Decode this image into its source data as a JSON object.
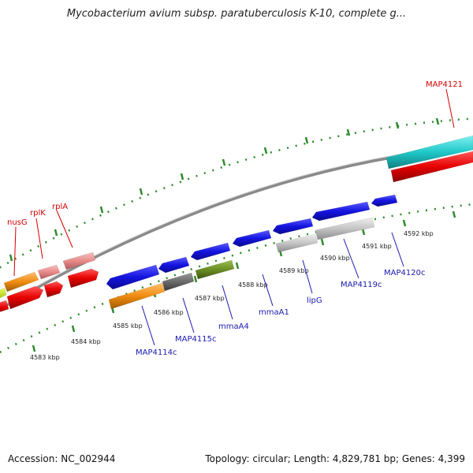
{
  "header": {
    "title": "Mycobacterium avium subsp. paratuberculosis K-10, complete g..."
  },
  "footer": {
    "accession": "Accession: NC_002944",
    "summary": "Topology: circular; Length: 4,829,781 bp; Genes: 4,399"
  },
  "colors": {
    "forward_label": "#d40000",
    "reverse_label": "#1a1ab0",
    "tick": "#2e8b2e",
    "backbone": "#8a8a8a",
    "blue_gene": "#1a1ae6",
    "red_gene": "#e60000",
    "pink_gene": "#e88a8a",
    "orange_gene": "#f08c10",
    "grey_gene": "#c4c4c4",
    "darkgrey_gene": "#6a6a6a",
    "olive_gene": "#6b8e23",
    "cyan_gene": "#20c8c8"
  },
  "scale": {
    "unit": "kbp",
    "labels": [
      "4583 kbp",
      "4584 kbp",
      "4585 kbp",
      "4586 kbp",
      "4587 kbp",
      "4588 kbp",
      "4589 kbp",
      "4590 kbp",
      "4591 kbp",
      "4592 kbp"
    ]
  },
  "forward_labels": [
    {
      "text": "nusG",
      "color_key": "forward_label"
    },
    {
      "text": "rplK",
      "color_key": "forward_label"
    },
    {
      "text": "rplA",
      "color_key": "forward_label"
    },
    {
      "text": "MAP4121",
      "color_key": "forward_label"
    }
  ],
  "reverse_labels": [
    {
      "text": "MAP4114c"
    },
    {
      "text": "MAP4115c"
    },
    {
      "text": "mmaA4"
    },
    {
      "text": "mmaA1"
    },
    {
      "text": "lipG"
    },
    {
      "text": "MAP4119c"
    },
    {
      "text": "MAP4120c"
    }
  ]
}
